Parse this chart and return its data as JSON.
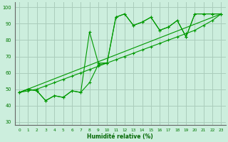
{
  "xlabel": "Humidité relative (%)",
  "bg_color": "#cceedd",
  "grid_color": "#aaccbb",
  "line_color": "#009900",
  "xlim": [
    -0.5,
    23.5
  ],
  "ylim": [
    28,
    103
  ],
  "yticks": [
    30,
    40,
    50,
    60,
    70,
    80,
    90,
    100
  ],
  "xticks": [
    0,
    1,
    2,
    3,
    4,
    5,
    6,
    7,
    8,
    9,
    10,
    11,
    12,
    13,
    14,
    15,
    16,
    17,
    18,
    19,
    20,
    21,
    22,
    23
  ],
  "line1_x": [
    0,
    1,
    2,
    3,
    4,
    5,
    6,
    7,
    8,
    9,
    10,
    11,
    12,
    13,
    14,
    15,
    16,
    17,
    18,
    19,
    20,
    21,
    22,
    23
  ],
  "line1_y": [
    48,
    50,
    49,
    43,
    46,
    45,
    49,
    48,
    54,
    65,
    66,
    94,
    96,
    89,
    91,
    94,
    86,
    88,
    92,
    82,
    96,
    96,
    96,
    96
  ],
  "line2_x": [
    0,
    1,
    2,
    3,
    4,
    5,
    6,
    7,
    8,
    9,
    10,
    11,
    12,
    13,
    14,
    15,
    16,
    17,
    18,
    19,
    20,
    21,
    22,
    23
  ],
  "line2_y": [
    48,
    50,
    49,
    43,
    46,
    45,
    49,
    48,
    85,
    66,
    66,
    94,
    96,
    89,
    91,
    94,
    86,
    88,
    92,
    82,
    96,
    96,
    96,
    96
  ],
  "line3_x": [
    0,
    1,
    2,
    3,
    4,
    5,
    6,
    7,
    8,
    9,
    10,
    11,
    12,
    13,
    14,
    15,
    16,
    17,
    18,
    19,
    20,
    21,
    22,
    23
  ],
  "line3_y": [
    48,
    49,
    50,
    52,
    54,
    56,
    58,
    60,
    62,
    64,
    66,
    68,
    70,
    72,
    74,
    76,
    78,
    80,
    82,
    84,
    86,
    89,
    92,
    96
  ],
  "line4_x": [
    0,
    23
  ],
  "line4_y": [
    48,
    96
  ]
}
